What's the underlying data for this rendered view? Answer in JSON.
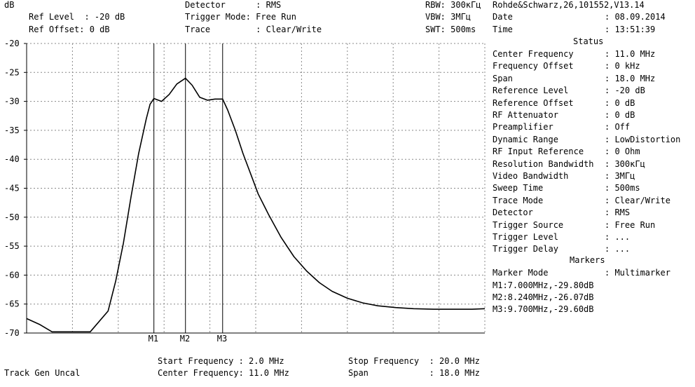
{
  "header": {
    "unit": "dB",
    "ref_level": "Ref Level  : -20 dB",
    "ref_offset": "Ref Offset: 0 dB",
    "detector": "Detector      : RMS",
    "trigger_mode": "Trigger Mode: Free Run",
    "trace": "Trace         : Clear/Write",
    "rbw": "RBW: 300кГц",
    "vbw": "VBW: 3МГц",
    "swt": "SWT: 500ms",
    "instrument": "Rohde&Schwarz,26,101552,V13.14",
    "date_label": "Date",
    "date_value": ": 08.09.2014",
    "time_label": "Time",
    "time_value": ": 13:51:39"
  },
  "status": {
    "title": "Status",
    "rows": [
      {
        "label": "Center Frequency",
        "value": ": 11.0 MHz"
      },
      {
        "label": "Frequency Offset",
        "value": ": 0 kHz"
      },
      {
        "label": "Span",
        "value": ": 18.0 MHz"
      },
      {
        "label": "Reference Level",
        "value": ": -20 dB"
      },
      {
        "label": "Reference Offset",
        "value": ": 0 dB"
      },
      {
        "label": "RF Attenuator",
        "value": ": 0 dB"
      },
      {
        "label": "Preamplifier",
        "value": ": Off"
      },
      {
        "label": "Dynamic Range",
        "value": ": LowDistortion"
      },
      {
        "label": "RF Input Reference",
        "value": ": 0 Ohm"
      },
      {
        "label": "Resolution Bandwidth",
        "value": ": 300кГц"
      },
      {
        "label": "Video Bandwidth",
        "value": ": 3МГц"
      },
      {
        "label": "Sweep Time",
        "value": ": 500ms"
      },
      {
        "label": "Trace Mode",
        "value": ": Clear/Write"
      },
      {
        "label": "Detector",
        "value": ": RMS"
      },
      {
        "label": "Trigger Source",
        "value": ": Free Run"
      },
      {
        "label": "Trigger Level",
        "value": ": ..."
      },
      {
        "label": "Trigger Delay",
        "value": ": ..."
      }
    ]
  },
  "markers_panel": {
    "title": "Markers",
    "mode_label": "Marker Mode",
    "mode_value": ": Multimarker",
    "lines": [
      "M1:7.000MHz,-29.80dB",
      "M2:8.240MHz,-26.07dB",
      "M3:9.700MHz,-29.60dB"
    ]
  },
  "footer": {
    "track": "Track Gen Uncal",
    "start": "Start Frequency : 2.0 MHz",
    "center": "Center Frequency: 11.0 MHz",
    "stop": "Stop Frequency  : 20.0 MHz",
    "span": "Span            : 18.0 MHz"
  },
  "chart_data": {
    "type": "line",
    "xlim": [
      2.0,
      20.0
    ],
    "ylim": [
      -70,
      -20
    ],
    "yticks": [
      "-20",
      "-25",
      "-30",
      "-35",
      "-40",
      "-45",
      "-50",
      "-55",
      "-60",
      "-65",
      "-70"
    ],
    "grid": true,
    "colors": {
      "trace": "#000000",
      "grid": "#888888"
    },
    "series": [
      {
        "x": [
          2.0,
          2.5,
          3.0,
          4.5,
          5.2,
          5.5,
          5.8,
          6.1,
          6.4,
          6.7,
          6.85,
          7.0,
          7.3,
          7.6,
          7.9,
          8.24,
          8.5,
          8.8,
          9.1,
          9.4,
          9.7,
          9.9,
          10.2,
          10.5,
          10.8,
          11.1,
          11.5,
          12.0,
          12.5,
          13.0,
          13.5,
          14.0,
          14.6,
          15.2,
          15.8,
          16.5,
          17.2,
          18.0,
          18.8,
          19.5,
          20.0
        ],
        "y": [
          -67.5,
          -68.5,
          -69.8,
          -69.8,
          -66.2,
          -61.0,
          -54.5,
          -46.5,
          -39.0,
          -33.0,
          -30.5,
          -29.5,
          -30.0,
          -28.8,
          -27.0,
          -26.0,
          -27.2,
          -29.3,
          -29.8,
          -29.6,
          -29.6,
          -31.5,
          -35.0,
          -39.0,
          -42.5,
          -46.0,
          -49.5,
          -53.5,
          -56.8,
          -59.3,
          -61.3,
          -62.8,
          -64.0,
          -64.8,
          -65.3,
          -65.6,
          -65.8,
          -65.9,
          -65.9,
          -65.9,
          -65.8
        ]
      }
    ],
    "markers": [
      {
        "label": "M1",
        "x": 7.0,
        "y": -29.8
      },
      {
        "label": "M2",
        "x": 8.24,
        "y": -26.07
      },
      {
        "label": "M3",
        "x": 9.7,
        "y": -29.6
      }
    ]
  }
}
